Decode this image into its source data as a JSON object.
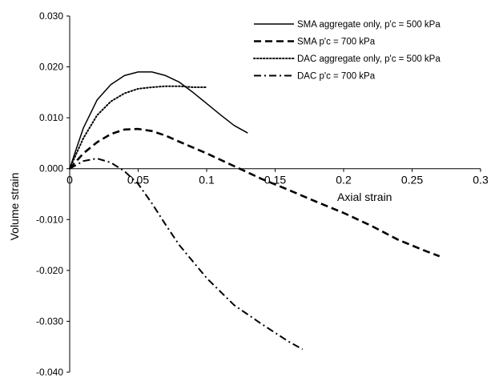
{
  "chart_data": {
    "type": "line",
    "xlabel": "Axial strain",
    "ylabel": "Volume strain",
    "xlim": [
      0,
      0.3
    ],
    "ylim": [
      -0.04,
      0.03
    ],
    "x_ticks": [
      0,
      0.05,
      0.1,
      0.15,
      0.2,
      0.25,
      0.3
    ],
    "x_tick_labels": [
      "0",
      "0.05",
      "0.1",
      "0.15",
      "0.2",
      "0.25",
      "0.3"
    ],
    "y_ticks": [
      0.03,
      0.02,
      0.01,
      0,
      -0.01,
      -0.02,
      -0.03,
      -0.04
    ],
    "y_tick_labels": [
      "0.030",
      "0.020",
      "0.010",
      "0.000",
      "-0.010",
      "-0.020",
      "-0.030",
      "-0.040"
    ],
    "grid": false,
    "legend_position": "top-right",
    "series": [
      {
        "name": "SMA aggregate only, p'c = 500 kPa",
        "style": "solid",
        "x": [
          0,
          0.005,
          0.01,
          0.02,
          0.03,
          0.04,
          0.05,
          0.06,
          0.07,
          0.08,
          0.09,
          0.1,
          0.11,
          0.12,
          0.13
        ],
        "y": [
          0,
          0.004,
          0.008,
          0.0135,
          0.0165,
          0.0183,
          0.019,
          0.019,
          0.0183,
          0.017,
          0.015,
          0.0128,
          0.0106,
          0.0085,
          0.007
        ]
      },
      {
        "name": "SMA p'c = 700 kPa",
        "style": "dashed",
        "x": [
          0,
          0.01,
          0.02,
          0.03,
          0.04,
          0.05,
          0.06,
          0.07,
          0.08,
          0.1,
          0.12,
          0.14,
          0.16,
          0.18,
          0.2,
          0.22,
          0.24,
          0.26,
          0.27
        ],
        "y": [
          0,
          0.003,
          0.0052,
          0.0068,
          0.0077,
          0.0078,
          0.0074,
          0.0065,
          0.0053,
          0.003,
          0.0005,
          -0.002,
          -0.0042,
          -0.0065,
          -0.0087,
          -0.0112,
          -0.014,
          -0.0162,
          -0.0172
        ]
      },
      {
        "name": "DAC aggregate only, p'c = 500 kPa",
        "style": "dotted",
        "x": [
          0,
          0.005,
          0.01,
          0.02,
          0.03,
          0.04,
          0.05,
          0.06,
          0.07,
          0.08,
          0.09,
          0.1
        ],
        "y": [
          0,
          0.003,
          0.006,
          0.0105,
          0.0132,
          0.0148,
          0.0157,
          0.016,
          0.0162,
          0.0162,
          0.016,
          0.016
        ]
      },
      {
        "name": "DAC p'c = 700 kPa",
        "style": "dashdot",
        "x": [
          0,
          0.01,
          0.02,
          0.03,
          0.04,
          0.05,
          0.06,
          0.07,
          0.08,
          0.1,
          0.12,
          0.14,
          0.16,
          0.17
        ],
        "y": [
          0,
          0.0015,
          0.002,
          0.0012,
          -0.0005,
          -0.003,
          -0.0068,
          -0.011,
          -0.015,
          -0.0215,
          -0.0268,
          -0.0305,
          -0.034,
          -0.0355
        ]
      }
    ]
  }
}
